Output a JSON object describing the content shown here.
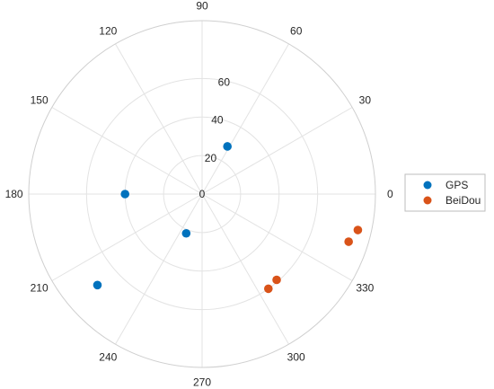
{
  "chart_data": {
    "type": "polar-scatter",
    "title": "",
    "angle_ticks": [
      "0",
      "30",
      "60",
      "90",
      "120",
      "150",
      "180",
      "210",
      "240",
      "270",
      "300",
      "330"
    ],
    "angle_tick_values": [
      0,
      30,
      60,
      90,
      120,
      150,
      180,
      210,
      240,
      270,
      300,
      330
    ],
    "radius_ticks": [
      "0",
      "20",
      "40",
      "60"
    ],
    "radius_tick_values": [
      0,
      20,
      40,
      60
    ],
    "r_range": [
      0,
      90
    ],
    "angle_label_position": "outside",
    "grid": true,
    "legend_position": "right",
    "series": [
      {
        "name": "GPS",
        "color": "#0072BD",
        "points": [
          {
            "theta": 62,
            "r": 28
          },
          {
            "theta": 180,
            "r": 40
          },
          {
            "theta": 248,
            "r": 22
          },
          {
            "theta": 221,
            "r": 72
          }
        ]
      },
      {
        "name": "BeiDou",
        "color": "#D95319",
        "points": [
          {
            "theta": 347,
            "r": 83
          },
          {
            "theta": 342,
            "r": 80
          },
          {
            "theta": 311,
            "r": 59
          },
          {
            "theta": 305,
            "r": 60
          }
        ]
      }
    ]
  }
}
